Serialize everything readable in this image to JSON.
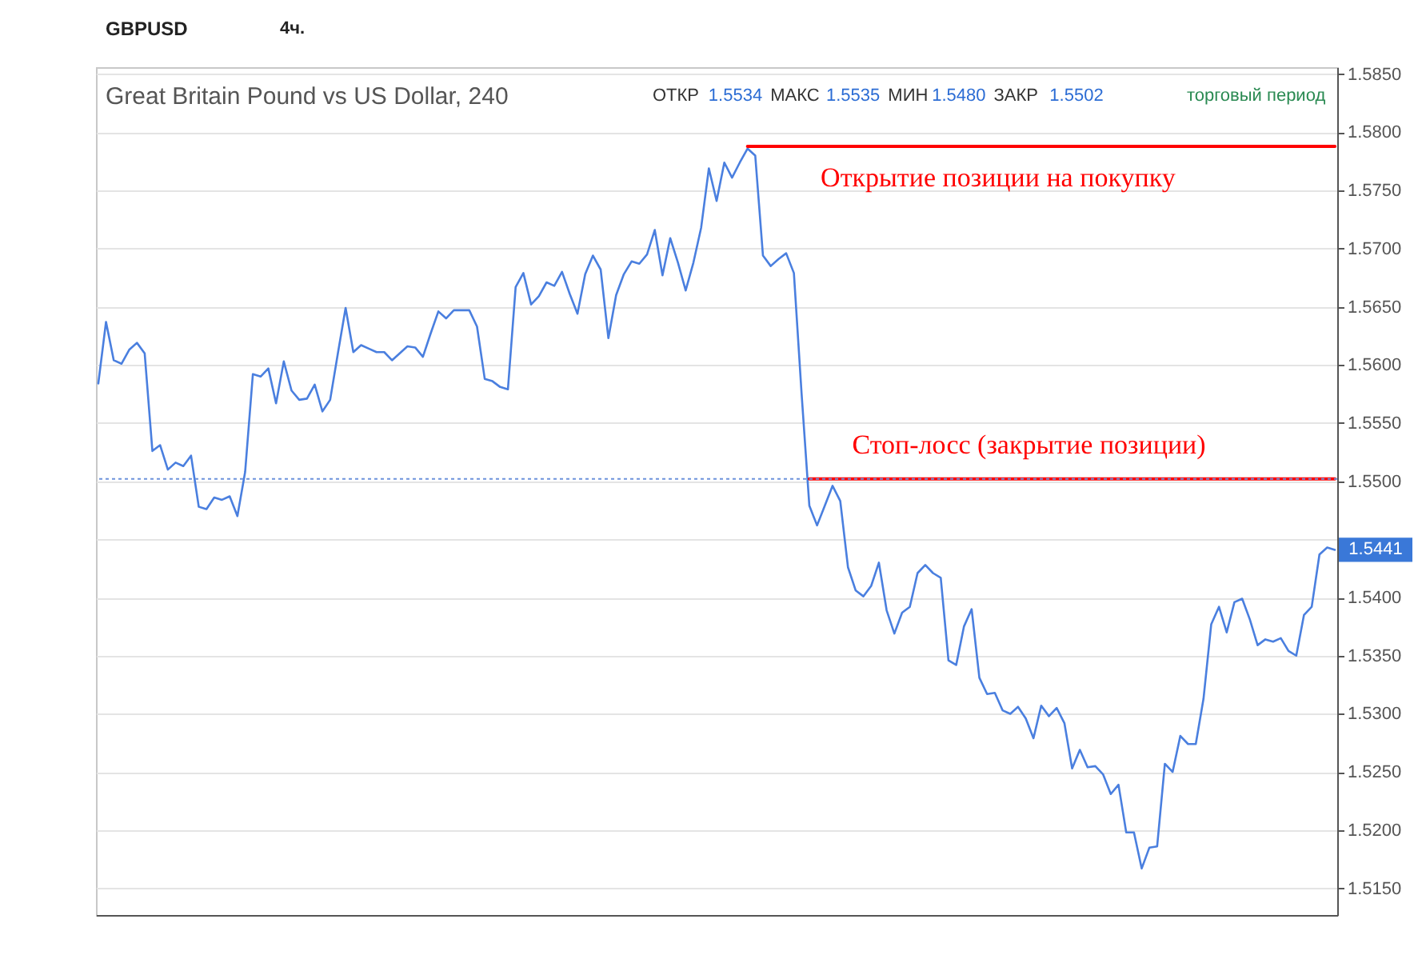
{
  "chart_data": {
    "type": "line",
    "title": "Great Britain Pound vs US Dollar, 240",
    "subtitle": "ОТКР 1.5534 МАКС 1.5535 МИН 1.5480 ЗАКР 1.5502",
    "categories": [
      null,
      null,
      null,
      null,
      null,
      null,
      null,
      null,
      null,
      null,
      null,
      null,
      null,
      null,
      null,
      null,
      null,
      null,
      null,
      null,
      null,
      null,
      null,
      null,
      null,
      null,
      null,
      null,
      null,
      null,
      null,
      null,
      null,
      null,
      null,
      null,
      null,
      null,
      null,
      null,
      null,
      null,
      null,
      null,
      null,
      null,
      null,
      null,
      null,
      null,
      null,
      null,
      null,
      null,
      null,
      null,
      null,
      null,
      null,
      null,
      null,
      null,
      null,
      null,
      null,
      null,
      null,
      null,
      null,
      null,
      null,
      null,
      null,
      null,
      null,
      null,
      null,
      null,
      null,
      null,
      null,
      null,
      null,
      null,
      null,
      null,
      null,
      null,
      null,
      null,
      null,
      null,
      null,
      null,
      null,
      null,
      null,
      null,
      null,
      null,
      null,
      null,
      null,
      null,
      null,
      null,
      null,
      null,
      null,
      null,
      null,
      null,
      null,
      null,
      null,
      null,
      null,
      null,
      null,
      null,
      null,
      null,
      null,
      null,
      null,
      null,
      null,
      null,
      null,
      null,
      null,
      null,
      null,
      null,
      null,
      null,
      null,
      null,
      null,
      null,
      null,
      null,
      null,
      null,
      null,
      null,
      null,
      null,
      null,
      null,
      null,
      null,
      null,
      null,
      null,
      null,
      null,
      null,
      null,
      null,
      null
    ],
    "series": [
      {
        "color": "#4a7fdf",
        "values": [
          1.5584,
          1.5637,
          1.5604,
          1.5601,
          1.5613,
          1.5619,
          1.561,
          1.5526,
          1.5531,
          1.551,
          1.5516,
          1.5513,
          1.5522,
          1.5478,
          1.5476,
          1.5486,
          1.5484,
          1.5487,
          1.547,
          1.5508,
          1.5592,
          1.559,
          1.5597,
          1.5567,
          1.5603,
          1.5578,
          1.557,
          1.5571,
          1.5583,
          1.556,
          1.557,
          1.561,
          1.5649,
          1.5611,
          1.5617,
          1.5614,
          1.5611,
          1.5611,
          1.5604,
          1.561,
          1.5616,
          1.5615,
          1.5607,
          1.5627,
          1.5646,
          1.564,
          1.5647,
          1.5647,
          1.5647,
          1.5633,
          1.5588,
          1.5586,
          1.5581,
          1.5579,
          1.5667,
          1.5679,
          1.5652,
          1.5659,
          1.5671,
          1.5668,
          1.568,
          1.5661,
          1.5644,
          1.5678,
          1.5694,
          1.5682,
          1.5623,
          1.566,
          1.5678,
          1.5689,
          1.5687,
          1.5695,
          1.5716,
          1.5677,
          1.5709,
          1.5688,
          1.5664,
          1.5688,
          1.5718,
          1.5769,
          1.5741,
          1.5774,
          1.5761,
          1.5774,
          1.5786,
          1.578,
          1.5694,
          1.5685,
          1.5691,
          1.5696,
          1.5679,
          1.5575,
          1.5479,
          1.5462,
          1.5479,
          1.5496,
          1.5483,
          1.5426,
          1.5406,
          1.5401,
          1.541,
          1.543,
          1.5389,
          1.5369,
          1.5387,
          1.5392,
          1.5421,
          1.5428,
          1.5421,
          1.5417,
          1.5346,
          1.5342,
          1.5375,
          1.539,
          1.5331,
          1.5317,
          1.5318,
          1.5303,
          1.53,
          1.5306,
          1.5296,
          1.5279,
          1.5307,
          1.5298,
          1.5305,
          1.5292,
          1.5253,
          1.5269,
          1.5254,
          1.5255,
          1.5248,
          1.5231,
          1.5239,
          1.5198,
          1.5198,
          1.5167,
          1.5185,
          1.5186,
          1.5257,
          1.525,
          1.5281,
          1.5274,
          1.5274,
          1.5313,
          1.5377,
          1.5392,
          1.537,
          1.5396,
          1.5399,
          1.5381,
          1.5359,
          1.5364,
          1.5362,
          1.5365,
          1.5354,
          1.535,
          1.5385,
          1.5392,
          1.5437,
          1.5443,
          1.5441
        ]
      },
      {
        "name": "Открытие позиции на покупку",
        "color": "#ff0000",
        "values": [
          null,
          null,
          null,
          null,
          null,
          null,
          null,
          null,
          null,
          null,
          null,
          null,
          null,
          null,
          null,
          null,
          null,
          null,
          null,
          null,
          null,
          null,
          null,
          null,
          null,
          null,
          null,
          null,
          null,
          null,
          null,
          null,
          null,
          null,
          null,
          null,
          null,
          null,
          null,
          null,
          null,
          null,
          null,
          null,
          null,
          null,
          null,
          null,
          null,
          null,
          null,
          null,
          null,
          null,
          null,
          null,
          null,
          null,
          null,
          null,
          null,
          null,
          null,
          null,
          null,
          null,
          null,
          null,
          null,
          null,
          null,
          null,
          null,
          null,
          null,
          null,
          null,
          null,
          null,
          null,
          null,
          null,
          null,
          null,
          1.5788,
          1.5788,
          1.5788,
          1.5788,
          1.5788,
          1.5788,
          1.5788,
          1.5788,
          1.5788,
          1.5788,
          1.5788,
          1.5788,
          1.5788,
          1.5788,
          1.5788,
          1.5788,
          1.5788,
          1.5788,
          1.5788,
          1.5788,
          1.5788,
          1.5788,
          1.5788,
          1.5788,
          1.5788,
          1.5788,
          1.5788,
          1.5788,
          1.5788,
          1.5788,
          1.5788,
          1.5788,
          1.5788,
          1.5788,
          1.5788,
          1.5788,
          1.5788,
          1.5788,
          1.5788,
          1.5788,
          1.5788,
          1.5788,
          1.5788,
          1.5788,
          1.5788,
          1.5788,
          1.5788,
          1.5788,
          1.5788,
          1.5788,
          1.5788,
          1.5788,
          1.5788,
          1.5788,
          1.5788,
          1.5788,
          1.5788,
          1.5788,
          1.5788,
          1.5788,
          1.5788,
          1.5788,
          1.5788,
          1.5788,
          1.5788,
          1.5788,
          1.5788,
          1.5788,
          1.5788,
          1.5788,
          1.5788,
          1.5788,
          1.5788,
          1.5788,
          1.5788,
          1.5788,
          1.5788
        ]
      },
      {
        "name": "Стоп-лосс (закрытие позиции)",
        "color": "#ff0000",
        "values": [
          null,
          null,
          null,
          null,
          null,
          null,
          null,
          null,
          null,
          null,
          null,
          null,
          null,
          null,
          null,
          null,
          null,
          null,
          null,
          null,
          null,
          null,
          null,
          null,
          null,
          null,
          null,
          null,
          null,
          null,
          null,
          null,
          null,
          null,
          null,
          null,
          null,
          null,
          null,
          null,
          null,
          null,
          null,
          null,
          null,
          null,
          null,
          null,
          null,
          null,
          null,
          null,
          null,
          null,
          null,
          null,
          null,
          null,
          null,
          null,
          null,
          null,
          null,
          null,
          null,
          null,
          null,
          null,
          null,
          null,
          null,
          null,
          null,
          null,
          null,
          null,
          null,
          null,
          null,
          null,
          null,
          null,
          null,
          null,
          null,
          null,
          null,
          null,
          null,
          null,
          null,
          null,
          1.5502,
          1.5502,
          1.5502,
          1.5502,
          1.5502,
          1.5502,
          1.5502,
          1.5502,
          1.5502,
          1.5502,
          1.5502,
          1.5502,
          1.5502,
          1.5502,
          1.5502,
          1.5502,
          1.5502,
          1.5502,
          1.5502,
          1.5502,
          1.5502,
          1.5502,
          1.5502,
          1.5502,
          1.5502,
          1.5502,
          1.5502,
          1.5502,
          1.5502,
          1.5502,
          1.5502,
          1.5502,
          1.5502,
          1.5502,
          1.5502,
          1.5502,
          1.5502,
          1.5502,
          1.5502,
          1.5502,
          1.5502,
          1.5502,
          1.5502,
          1.5502,
          1.5502,
          1.5502,
          1.5502,
          1.5502,
          1.5502,
          1.5502,
          1.5502,
          1.5502,
          1.5502,
          1.5502,
          1.5502,
          1.5502,
          1.5502,
          1.5502,
          1.5502,
          1.5502,
          1.5502,
          1.5502,
          1.5502,
          1.5502,
          1.5502,
          1.5502,
          1.5502,
          1.5502,
          1.5502
        ]
      }
    ],
    "ylim": [
      1.5127,
      1.5856
    ],
    "yticks": [
      {
        "value": 1.515,
        "label": "1.5150"
      },
      {
        "value": 1.52,
        "label": "1.5200"
      },
      {
        "value": 1.525,
        "label": "1.5250"
      },
      {
        "value": 1.53,
        "label": "1.5300"
      },
      {
        "value": 1.535,
        "label": "1.5350"
      },
      {
        "value": 1.54,
        "label": "1.5400"
      },
      {
        "value": 1.545,
        "label": null
      },
      {
        "value": 1.55,
        "label": "1.5500"
      },
      {
        "value": 1.555,
        "label": "1.5550"
      },
      {
        "value": 1.56,
        "label": "1.5600"
      },
      {
        "value": 1.565,
        "label": "1.5650"
      },
      {
        "value": 1.57,
        "label": "1.5700"
      },
      {
        "value": 1.575,
        "label": "1.5750"
      },
      {
        "value": 1.58,
        "label": "1.5800"
      },
      {
        "value": 1.585,
        "label": "1.5850"
      }
    ],
    "grid": "y",
    "tick_labels": "y",
    "ref_lines": [
      {
        "axis": "y",
        "value": 1.5502,
        "color": "#6d93dc",
        "line_style": "dotted"
      }
    ],
    "annotations": [
      "GBPUSD",
      "4ч.",
      "торговый период",
      "1.5441"
    ]
  }
}
